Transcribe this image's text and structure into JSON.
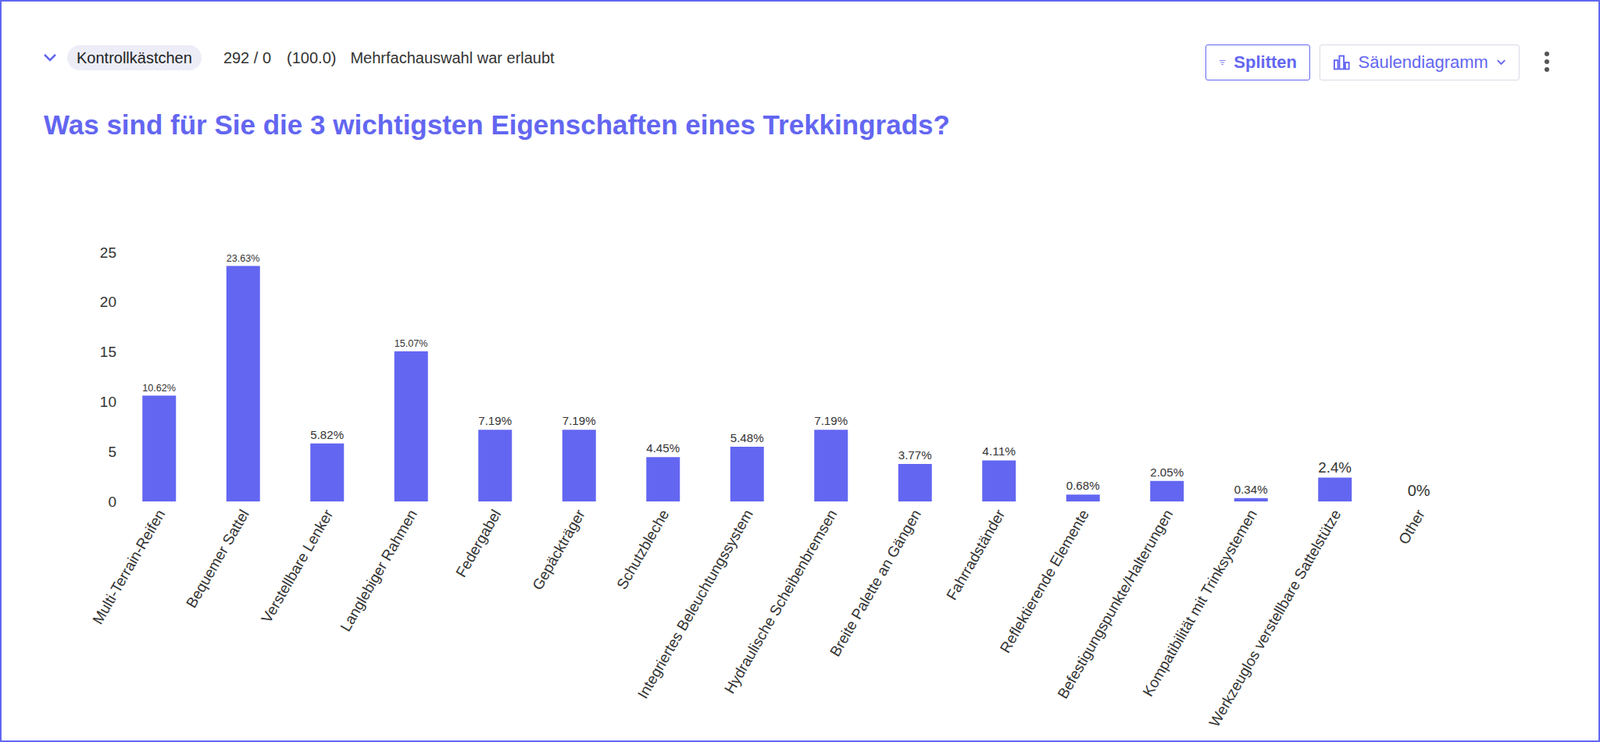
{
  "header": {
    "question_type": "Kontrollkästchen",
    "counts": "292 / 0",
    "percent": "(100.0)",
    "note": "Mehrfachauswahl war erlaubt",
    "buttons": [
      "Splitten",
      "Säulendiagramm"
    ]
  },
  "chart_data": {
    "type": "bar",
    "title": "Was sind für Sie die 3 wichtigsten Eigenschaften eines Trekkingrads?",
    "categories": [
      "Multi-Terrain-Reifen",
      "Bequemer Sattel",
      "Verstellbare Lenker",
      "Langlebiger Rahmen",
      "Federgabel",
      "Gepäckträger",
      "Schutzbleche",
      "Integriertes Beleuchtungssystem",
      "Hydraulische Scheibenbremsen",
      "Breite Palette an Gängen",
      "Fahrradständer",
      "Reflektierende Elemente",
      "Befestigungspunkte/Halterungen",
      "Kompatibilität mit Trinksystemen",
      "Werkzeuglos verstellbare Sattelstütze",
      "Other"
    ],
    "values": [
      10.62,
      23.63,
      5.82,
      15.07,
      7.19,
      7.19,
      4.45,
      5.48,
      7.19,
      3.77,
      4.11,
      0.68,
      2.05,
      0.34,
      2.4,
      0
    ],
    "value_labels": [
      "10.62%",
      "23.63%",
      "5.82%",
      "15.07%",
      "7.19%",
      "7.19%",
      "4.45%",
      "5.48%",
      "7.19%",
      "3.77%",
      "4.11%",
      "0.68%",
      "2.05%",
      "0.34%",
      "2.4%",
      "0%"
    ],
    "color": "#6366f1",
    "ylim": [
      0,
      25
    ],
    "yticks": [
      0,
      5,
      10,
      15,
      20,
      25
    ],
    "grid": false,
    "data_labels": true
  }
}
